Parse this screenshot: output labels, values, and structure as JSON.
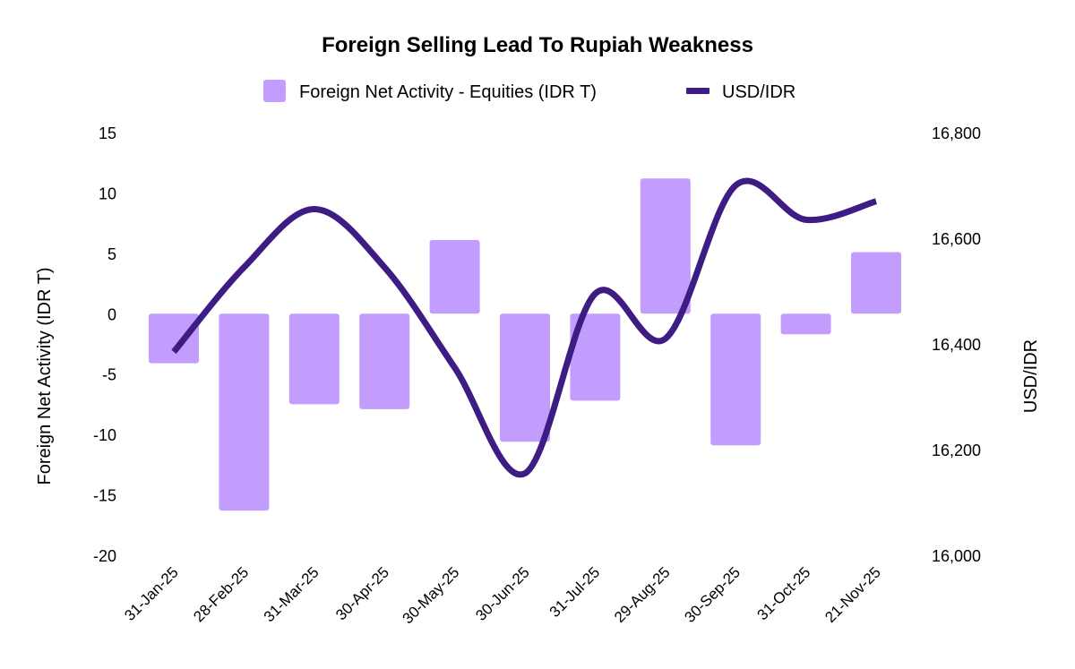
{
  "chart_data": {
    "type": "bar",
    "title": "Foreign Selling Lead To Rupiah Weakness",
    "categories": [
      "31-Jan-25",
      "28-Feb-25",
      "31-Mar-25",
      "30-Apr-25",
      "30-May-25",
      "30-Jun-25",
      "31-Jul-25",
      "29-Aug-25",
      "30-Sep-25",
      "31-Oct-25",
      "21-Nov-25"
    ],
    "series": [
      {
        "name": "Foreign Net Activity - Equities (IDR T)",
        "type": "bar",
        "axis": "left",
        "color": "#c39dfd",
        "values": [
          -4.1,
          -16.3,
          -7.5,
          -7.9,
          6.1,
          -10.6,
          -7.2,
          11.2,
          -10.9,
          -1.7,
          5.1
        ]
      },
      {
        "name": "USD/IDR",
        "type": "line",
        "axis": "right",
        "color": "#3d1c84",
        "values": [
          16385,
          16545,
          16655,
          16545,
          16355,
          16155,
          16495,
          16410,
          16700,
          16635,
          16670
        ]
      }
    ],
    "left_axis": {
      "label": "Foreign Net Activity (IDR T)",
      "min": -20,
      "max": 15,
      "ticks": [
        15,
        10,
        5,
        0,
        -5,
        -10,
        -15,
        -20
      ]
    },
    "right_axis": {
      "label": "USD/IDR",
      "min": 16000,
      "max": 16800,
      "ticks": [
        16800,
        16600,
        16400,
        16200,
        16000
      ],
      "tick_labels": [
        "16,800",
        "16,600",
        "16,400",
        "16,200",
        "16,000"
      ]
    },
    "legend_position": "top-center",
    "grid": false
  }
}
